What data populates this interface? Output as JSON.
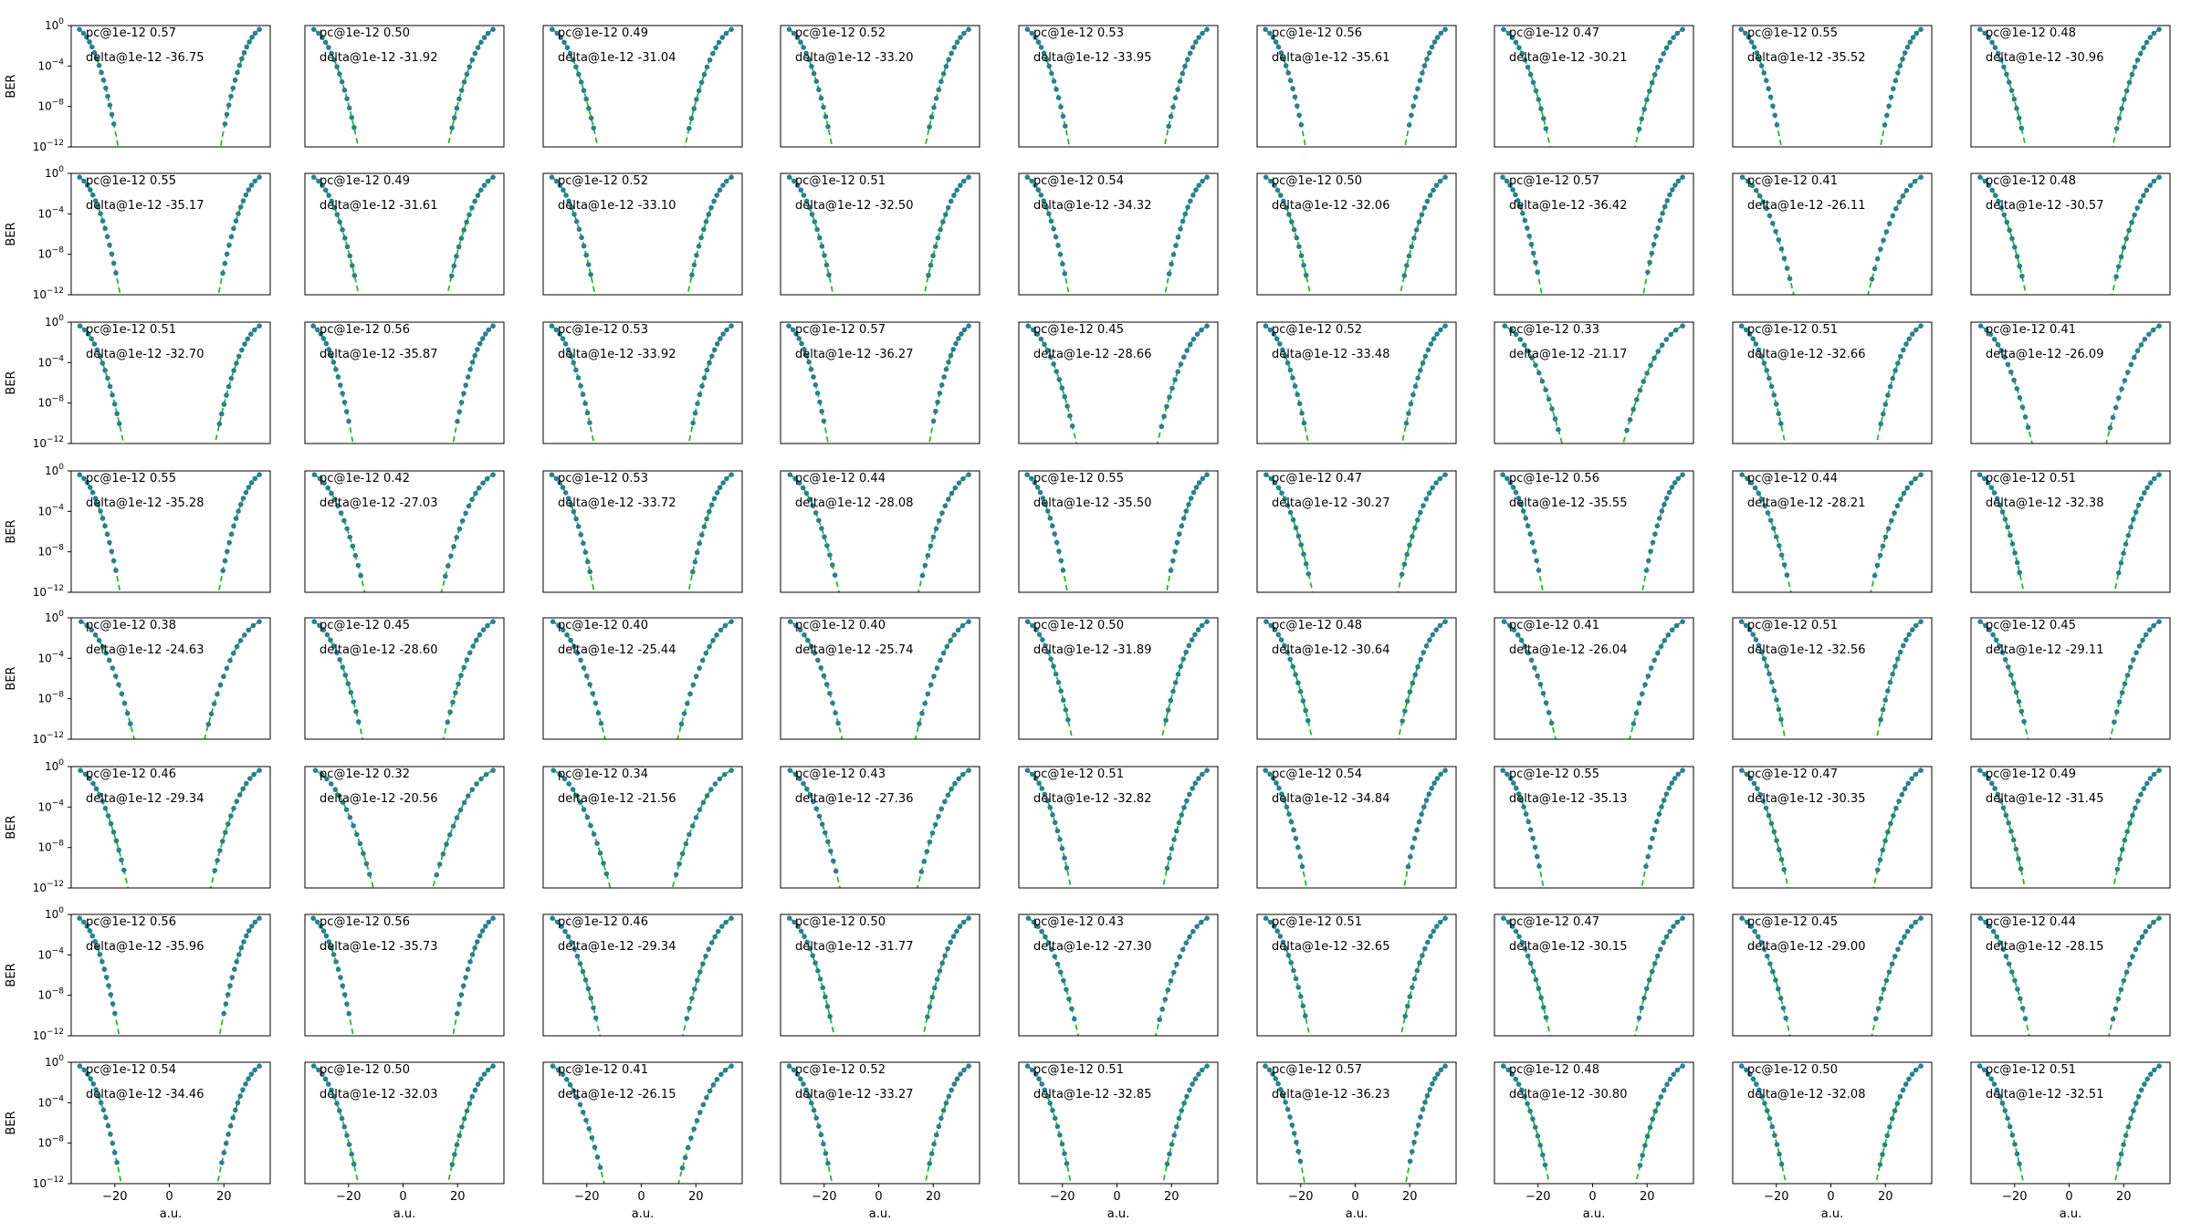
{
  "figure": {
    "colors": {
      "points": "#2a7f92",
      "fit": "#22bb22",
      "frame": "#000000"
    }
  },
  "chart_data": {
    "type": "scatter",
    "rows": 8,
    "cols": 9,
    "xlabel": "a.u.",
    "ylabel": "BER",
    "xticks": [
      -20,
      0,
      20
    ],
    "xtick_labels": [
      "−20",
      "0",
      "20"
    ],
    "xlim": [
      -36,
      37
    ],
    "ylim_log10": [
      -12,
      0
    ],
    "yscale": "log",
    "yticks_exp": [
      0,
      -4,
      -8,
      -12
    ],
    "ytick_base": "10",
    "ytick_exponents": [
      "0",
      "−4",
      "−8",
      "−12"
    ],
    "grid": false,
    "series": [
      {
        "name": "",
        "style": "points",
        "color": "#2a7f92"
      },
      {
        "name": "",
        "style": "dashed fit",
        "color": "#22bb22"
      }
    ],
    "annotations": [
      [
        [
          "pc@1e-12 0.57",
          "delta@1e-12 -36.75"
        ],
        [
          "pc@1e-12 0.50",
          "delta@1e-12 -31.92"
        ],
        [
          "pc@1e-12 0.49",
          "delta@1e-12 -31.04"
        ],
        [
          "pc@1e-12 0.52",
          "delta@1e-12 -33.20"
        ],
        [
          "pc@1e-12 0.53",
          "delta@1e-12 -33.95"
        ],
        [
          "pc@1e-12 0.56",
          "delta@1e-12 -35.61"
        ],
        [
          "pc@1e-12 0.47",
          "delta@1e-12 -30.21"
        ],
        [
          "pc@1e-12 0.55",
          "delta@1e-12 -35.52"
        ],
        [
          "pc@1e-12 0.48",
          "delta@1e-12 -30.96"
        ]
      ],
      [
        [
          "pc@1e-12 0.55",
          "delta@1e-12 -35.17"
        ],
        [
          "pc@1e-12 0.49",
          "delta@1e-12 -31.61"
        ],
        [
          "pc@1e-12 0.52",
          "delta@1e-12 -33.10"
        ],
        [
          "pc@1e-12 0.51",
          "delta@1e-12 -32.50"
        ],
        [
          "pc@1e-12 0.54",
          "delta@1e-12 -34.32"
        ],
        [
          "pc@1e-12 0.50",
          "delta@1e-12 -32.06"
        ],
        [
          "pc@1e-12 0.57",
          "delta@1e-12 -36.42"
        ],
        [
          "pc@1e-12 0.41",
          "delta@1e-12 -26.11"
        ],
        [
          "pc@1e-12 0.48",
          "delta@1e-12 -30.57"
        ]
      ],
      [
        [
          "pc@1e-12 0.51",
          "delta@1e-12 -32.70"
        ],
        [
          "pc@1e-12 0.56",
          "delta@1e-12 -35.87"
        ],
        [
          "pc@1e-12 0.53",
          "delta@1e-12 -33.92"
        ],
        [
          "pc@1e-12 0.57",
          "delta@1e-12 -36.27"
        ],
        [
          "pc@1e-12 0.45",
          "delta@1e-12 -28.66"
        ],
        [
          "pc@1e-12 0.52",
          "delta@1e-12 -33.48"
        ],
        [
          "pc@1e-12 0.33",
          "delta@1e-12 -21.17"
        ],
        [
          "pc@1e-12 0.51",
          "delta@1e-12 -32.66"
        ],
        [
          "pc@1e-12 0.41",
          "delta@1e-12 -26.09"
        ]
      ],
      [
        [
          "pc@1e-12 0.55",
          "delta@1e-12 -35.28"
        ],
        [
          "pc@1e-12 0.42",
          "delta@1e-12 -27.03"
        ],
        [
          "pc@1e-12 0.53",
          "delta@1e-12 -33.72"
        ],
        [
          "pc@1e-12 0.44",
          "delta@1e-12 -28.08"
        ],
        [
          "pc@1e-12 0.55",
          "delta@1e-12 -35.50"
        ],
        [
          "pc@1e-12 0.47",
          "delta@1e-12 -30.27"
        ],
        [
          "pc@1e-12 0.56",
          "delta@1e-12 -35.55"
        ],
        [
          "pc@1e-12 0.44",
          "delta@1e-12 -28.21"
        ],
        [
          "pc@1e-12 0.51",
          "delta@1e-12 -32.38"
        ]
      ],
      [
        [
          "pc@1e-12 0.38",
          "delta@1e-12 -24.63"
        ],
        [
          "pc@1e-12 0.45",
          "delta@1e-12 -28.60"
        ],
        [
          "pc@1e-12 0.40",
          "delta@1e-12 -25.44"
        ],
        [
          "pc@1e-12 0.40",
          "delta@1e-12 -25.74"
        ],
        [
          "pc@1e-12 0.50",
          "delta@1e-12 -31.89"
        ],
        [
          "pc@1e-12 0.48",
          "delta@1e-12 -30.64"
        ],
        [
          "pc@1e-12 0.41",
          "delta@1e-12 -26.04"
        ],
        [
          "pc@1e-12 0.51",
          "delta@1e-12 -32.56"
        ],
        [
          "pc@1e-12 0.45",
          "delta@1e-12 -29.11"
        ]
      ],
      [
        [
          "pc@1e-12 0.46",
          "delta@1e-12 -29.34"
        ],
        [
          "pc@1e-12 0.32",
          "delta@1e-12 -20.56"
        ],
        [
          "pc@1e-12 0.34",
          "delta@1e-12 -21.56"
        ],
        [
          "pc@1e-12 0.43",
          "delta@1e-12 -27.36"
        ],
        [
          "pc@1e-12 0.51",
          "delta@1e-12 -32.82"
        ],
        [
          "pc@1e-12 0.54",
          "delta@1e-12 -34.84"
        ],
        [
          "pc@1e-12 0.55",
          "delta@1e-12 -35.13"
        ],
        [
          "pc@1e-12 0.47",
          "delta@1e-12 -30.35"
        ],
        [
          "pc@1e-12 0.49",
          "delta@1e-12 -31.45"
        ]
      ],
      [
        [
          "pc@1e-12 0.56",
          "delta@1e-12 -35.96"
        ],
        [
          "pc@1e-12 0.56",
          "delta@1e-12 -35.73"
        ],
        [
          "pc@1e-12 0.46",
          "delta@1e-12 -29.34"
        ],
        [
          "pc@1e-12 0.50",
          "delta@1e-12 -31.77"
        ],
        [
          "pc@1e-12 0.43",
          "delta@1e-12 -27.30"
        ],
        [
          "pc@1e-12 0.51",
          "delta@1e-12 -32.65"
        ],
        [
          "pc@1e-12 0.47",
          "delta@1e-12 -30.15"
        ],
        [
          "pc@1e-12 0.45",
          "delta@1e-12 -29.00"
        ],
        [
          "pc@1e-12 0.44",
          "delta@1e-12 -28.15"
        ]
      ],
      [
        [
          "pc@1e-12 0.54",
          "delta@1e-12 -34.46"
        ],
        [
          "pc@1e-12 0.50",
          "delta@1e-12 -32.03"
        ],
        [
          "pc@1e-12 0.41",
          "delta@1e-12 -26.15"
        ],
        [
          "pc@1e-12 0.52",
          "delta@1e-12 -33.27"
        ],
        [
          "pc@1e-12 0.51",
          "delta@1e-12 -32.85"
        ],
        [
          "pc@1e-12 0.57",
          "delta@1e-12 -36.23"
        ],
        [
          "pc@1e-12 0.48",
          "delta@1e-12 -30.80"
        ],
        [
          "pc@1e-12 0.50",
          "delta@1e-12 -32.08"
        ],
        [
          "pc@1e-12 0.51",
          "delta@1e-12 -32.51"
        ]
      ]
    ]
  }
}
